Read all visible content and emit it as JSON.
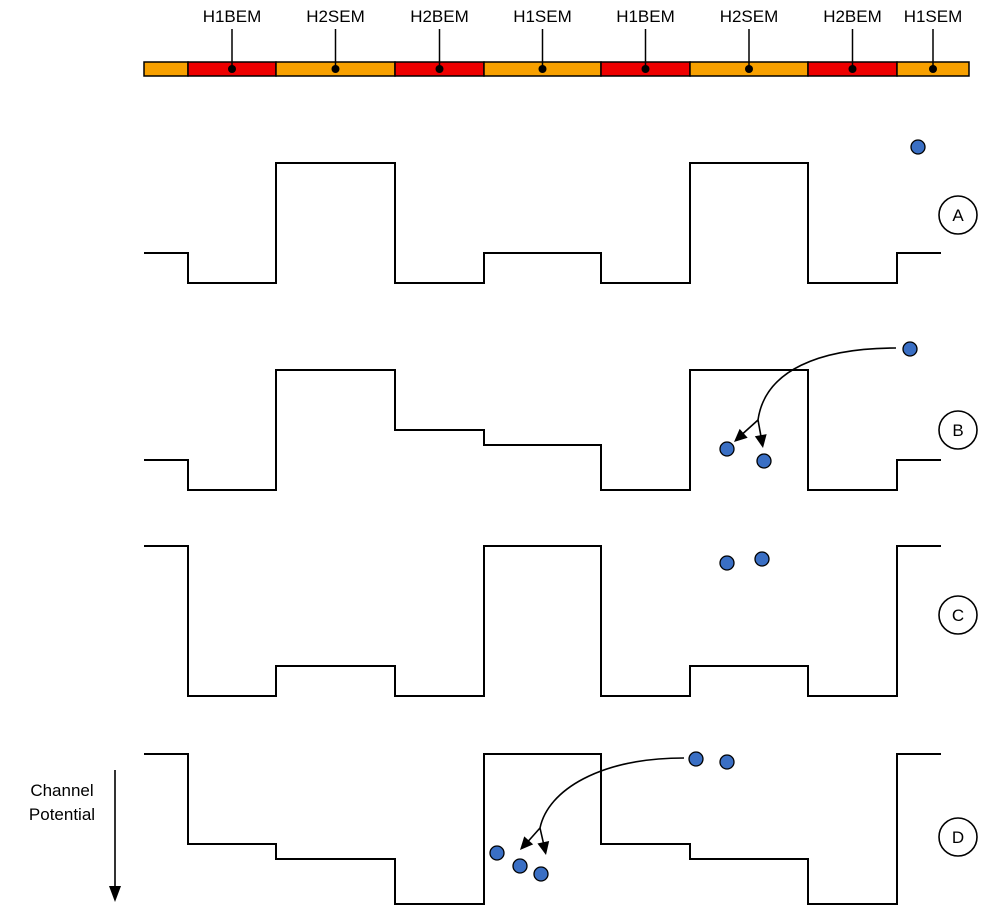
{
  "gate_bar": {
    "segments": [
      {
        "label": "",
        "type": "SEM"
      },
      {
        "label": "H1BEM",
        "type": "BEM"
      },
      {
        "label": "H2SEM",
        "type": "SEM"
      },
      {
        "label": "H2BEM",
        "type": "BEM"
      },
      {
        "label": "H1SEM",
        "type": "SEM"
      },
      {
        "label": "H1BEM",
        "type": "BEM"
      },
      {
        "label": "H2SEM",
        "type": "SEM"
      },
      {
        "label": "H2BEM",
        "type": "BEM"
      },
      {
        "label": "H1SEM",
        "type": "SEM"
      }
    ],
    "colors": {
      "SEM": "#f7a000",
      "BEM": "#ee0000"
    }
  },
  "panels": [
    {
      "label": "A",
      "levels": [
        1,
        0,
        4,
        0,
        1,
        0,
        4,
        0,
        1
      ],
      "electrons": 1
    },
    {
      "label": "B",
      "levels": [
        1,
        0,
        4,
        2,
        1.5,
        0,
        4,
        0,
        1
      ],
      "electrons": 2
    },
    {
      "label": "C",
      "levels": [
        5,
        0,
        1,
        0,
        5,
        0,
        1,
        0,
        5
      ],
      "electrons": 2
    },
    {
      "label": "D",
      "levels": [
        5,
        2,
        1.5,
        0,
        5,
        2,
        1.5,
        0,
        5
      ],
      "electrons": 3
    }
  ],
  "axis": {
    "label_line1": "Channel",
    "label_line2": "Potential"
  },
  "colors": {
    "electron": "#3a6fc4",
    "line": "#000000"
  }
}
